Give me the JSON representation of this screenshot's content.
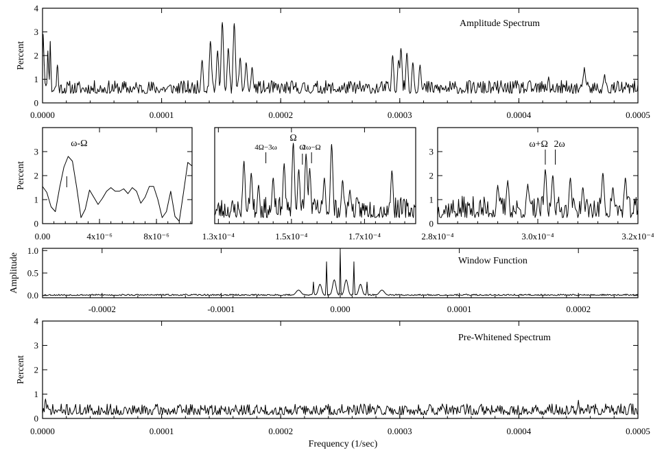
{
  "figure": {
    "xlabel_bottom": "Frequency (1/sec)"
  },
  "chart_data": [
    {
      "id": "amplitude",
      "type": "line",
      "title": "Amplitude Spectrum",
      "xlabel": "",
      "ylabel": "Percent",
      "xlim": [
        0,
        0.0005
      ],
      "ylim": [
        0,
        4
      ],
      "xticks": [
        0,
        0.0001,
        0.0002,
        0.0003,
        0.0004,
        0.0005
      ],
      "xtick_labels": [
        "0.0000",
        "0.0001",
        "0.0002",
        "0.0003",
        "0.0004",
        "0.0005"
      ],
      "yticks": [
        0,
        1,
        2,
        3,
        4
      ],
      "ytick_labels": [
        "0",
        "1",
        "2",
        "3",
        "4"
      ],
      "noise": {
        "points": 700,
        "seed": 11,
        "base": 0.4,
        "amp": 0.55
      },
      "features": [
        {
          "x": 5e-07,
          "y": 2.9,
          "w": 8e-07
        },
        {
          "x": 1.5e-06,
          "y": 1.6,
          "w": 8e-07
        },
        {
          "x": 4.5e-06,
          "y": 2.2,
          "w": 8e-07
        },
        {
          "x": 6.5e-06,
          "y": 2.6,
          "w": 8e-07
        },
        {
          "x": 1.25e-05,
          "y": 1.6,
          "w": 1.2e-06
        },
        {
          "x": 0.000134,
          "y": 1.8,
          "w": 1.5e-06
        },
        {
          "x": 0.000141,
          "y": 2.6,
          "w": 1.5e-06
        },
        {
          "x": 0.000147,
          "y": 2.2,
          "w": 1.5e-06
        },
        {
          "x": 0.000151,
          "y": 3.4,
          "w": 1.5e-06
        },
        {
          "x": 0.000156,
          "y": 2.3,
          "w": 1.5e-06
        },
        {
          "x": 0.000161,
          "y": 3.35,
          "w": 1.5e-06
        },
        {
          "x": 0.000166,
          "y": 1.9,
          "w": 1.5e-06
        },
        {
          "x": 0.000171,
          "y": 1.7,
          "w": 1.5e-06
        },
        {
          "x": 0.000176,
          "y": 1.5,
          "w": 1.5e-06
        },
        {
          "x": 0.000294,
          "y": 2.0,
          "w": 1.5e-06
        },
        {
          "x": 0.000299,
          "y": 1.8,
          "w": 1.5e-06
        },
        {
          "x": 0.000301,
          "y": 2.3,
          "w": 1.5e-06
        },
        {
          "x": 0.000306,
          "y": 2.1,
          "w": 1.5e-06
        },
        {
          "x": 0.000311,
          "y": 1.7,
          "w": 1.5e-06
        },
        {
          "x": 0.000317,
          "y": 1.6,
          "w": 1.5e-06
        },
        {
          "x": 0.000425,
          "y": 1.1,
          "w": 1.5e-06
        },
        {
          "x": 0.000455,
          "y": 1.5,
          "w": 1.5e-06
        },
        {
          "x": 0.000472,
          "y": 1.2,
          "w": 1.5e-06
        }
      ]
    },
    {
      "id": "zoom_low",
      "type": "line",
      "title": "",
      "xlabel": "",
      "ylabel": "Percent",
      "xlim": [
        0,
        1.05e-05
      ],
      "ylim": [
        0,
        4
      ],
      "xticks": [
        0,
        4e-06,
        8e-06
      ],
      "xtick_labels": [
        "0.00",
        "4x10⁻⁶",
        "8x10⁻⁶"
      ],
      "yticks": [
        0,
        1,
        2,
        3
      ],
      "ytick_labels": [
        "0",
        "1",
        "2",
        "3"
      ],
      "x": [
        0.0,
        3e-07,
        6e-07,
        9e-07,
        1.2e-06,
        1.5e-06,
        1.8e-06,
        2.1e-06,
        2.4e-06,
        2.7e-06,
        3e-06,
        3.3e-06,
        3.6e-06,
        3.9e-06,
        4.2e-06,
        4.5e-06,
        4.8e-06,
        5.1e-06,
        5.4e-06,
        5.7e-06,
        6e-06,
        6.3e-06,
        6.6e-06,
        6.9e-06,
        7.2e-06,
        7.5e-06,
        7.8e-06,
        8.1e-06,
        8.4e-06,
        8.7e-06,
        9e-06,
        9.3e-06,
        9.6e-06,
        9.9e-06,
        1.02e-05,
        1.05e-05
      ],
      "y": [
        1.55,
        1.3,
        0.7,
        0.5,
        1.5,
        2.35,
        2.8,
        2.6,
        1.5,
        0.25,
        0.6,
        1.4,
        1.1,
        0.8,
        1.05,
        1.35,
        1.5,
        1.35,
        1.35,
        1.45,
        1.25,
        1.5,
        1.35,
        0.85,
        1.1,
        1.55,
        1.55,
        1.0,
        0.25,
        0.5,
        1.35,
        0.3,
        0.1,
        1.3,
        2.55,
        2.4
      ],
      "annotations": [
        {
          "label": "ω-Ω",
          "x": 1.7e-06,
          "size": "large"
        }
      ]
    },
    {
      "id": "zoom_mid",
      "type": "line",
      "title": "",
      "xlabel": "",
      "ylabel": "",
      "xlim": [
        0.000129,
        0.000184
      ],
      "ylim": [
        0,
        4
      ],
      "xticks": [
        0.00013,
        0.00015,
        0.00017
      ],
      "xtick_labels": [
        "1.3x10⁻⁴",
        "1.5x10⁻⁴",
        "1.7x10⁻⁴"
      ],
      "yticks": [],
      "ytick_labels": [],
      "noise": {
        "points": 260,
        "seed": 23,
        "base": 0.25,
        "amp": 0.85
      },
      "features": [
        {
          "x": 0.000137,
          "y": 2.6,
          "w": 5e-07
        },
        {
          "x": 0.000139,
          "y": 2.1,
          "w": 5e-07
        },
        {
          "x": 0.000141,
          "y": 1.6,
          "w": 5e-07
        },
        {
          "x": 0.000145,
          "y": 1.9,
          "w": 5e-07
        },
        {
          "x": 0.000148,
          "y": 2.5,
          "w": 5e-07
        },
        {
          "x": 0.0001505,
          "y": 3.35,
          "w": 5e-07
        },
        {
          "x": 0.000152,
          "y": 2.25,
          "w": 5e-07
        },
        {
          "x": 0.000154,
          "y": 2.9,
          "w": 5e-07
        },
        {
          "x": 0.000155,
          "y": 2.3,
          "w": 5e-07
        },
        {
          "x": 0.000159,
          "y": 1.9,
          "w": 5e-07
        },
        {
          "x": 0.000161,
          "y": 3.3,
          "w": 5e-07
        },
        {
          "x": 0.000164,
          "y": 1.8,
          "w": 5e-07
        },
        {
          "x": 0.000166,
          "y": 1.4,
          "w": 5e-07
        },
        {
          "x": 0.0001775,
          "y": 2.2,
          "w": 5e-07
        }
      ],
      "annotations": [
        {
          "label": "Ω",
          "x": 0.0001505,
          "size": "large",
          "above": true
        },
        {
          "label": "4Ω−3ω",
          "x": 0.000143,
          "size": "small"
        },
        {
          "label": "ω",
          "x": 0.000153,
          "size": "large"
        },
        {
          "label": "2ω−Ω",
          "x": 0.0001555,
          "size": "small"
        }
      ]
    },
    {
      "id": "zoom_high",
      "type": "line",
      "title": "",
      "xlabel": "",
      "ylabel": "",
      "xlim": [
        0.00028,
        0.00032
      ],
      "ylim": [
        0,
        4
      ],
      "xticks": [
        0.00028,
        0.0003,
        0.00032
      ],
      "xtick_labels": [
        "2.8x10⁻⁴",
        "3.0x10⁻⁴",
        "3.2x10⁻⁴"
      ],
      "yticks": [
        0,
        1,
        2,
        3
      ],
      "ytick_labels": [
        "0",
        "1",
        "2",
        "3"
      ],
      "noise": {
        "points": 220,
        "seed": 37,
        "base": 0.25,
        "amp": 0.9
      },
      "features": [
        {
          "x": 0.000292,
          "y": 1.6,
          "w": 4e-07
        },
        {
          "x": 0.000294,
          "y": 1.8,
          "w": 4e-07
        },
        {
          "x": 0.000298,
          "y": 1.65,
          "w": 4e-07
        },
        {
          "x": 0.0003015,
          "y": 2.25,
          "w": 4e-07
        },
        {
          "x": 0.000303,
          "y": 2.0,
          "w": 4e-07
        },
        {
          "x": 0.0003065,
          "y": 1.9,
          "w": 4e-07
        },
        {
          "x": 0.000309,
          "y": 1.5,
          "w": 4e-07
        },
        {
          "x": 0.000313,
          "y": 2.1,
          "w": 4e-07
        },
        {
          "x": 0.000315,
          "y": 1.5,
          "w": 4e-07
        },
        {
          "x": 0.0003175,
          "y": 1.9,
          "w": 4e-07
        }
      ],
      "annotations": [
        {
          "label": "ω+Ω",
          "x": 0.0003015,
          "size": "large"
        },
        {
          "label": "2ω",
          "x": 0.0003035,
          "size": "large"
        }
      ]
    },
    {
      "id": "window",
      "type": "line",
      "title": "Window Function",
      "xlabel": "",
      "ylabel": "Amplitude",
      "xlim": [
        -0.00025,
        0.00025
      ],
      "ylim": [
        -0.05,
        1.05
      ],
      "xticks": [
        -0.0002,
        -0.0001,
        0,
        0.0001,
        0.0002
      ],
      "xtick_labels": [
        "-0.0002",
        "-0.0001",
        "0.000",
        "0.0001",
        "0.0002"
      ],
      "yticks": [
        0,
        0.5,
        1.0
      ],
      "ytick_labels": [
        "0.0",
        "0.5",
        "1.0"
      ],
      "noise": {
        "points": 800,
        "seed": 53,
        "base": 0.0,
        "amp": 0.03
      },
      "features": [
        {
          "x": 0,
          "y": 1.0,
          "w": 4e-07
        },
        {
          "x": -1.15e-05,
          "y": 0.75,
          "w": 4e-07
        },
        {
          "x": 1.15e-05,
          "y": 0.75,
          "w": 4e-07
        },
        {
          "x": -2.25e-05,
          "y": 0.3,
          "w": 5e-07
        },
        {
          "x": 2.25e-05,
          "y": 0.3,
          "w": 5e-07
        },
        {
          "x": -5e-06,
          "y": 0.35,
          "w": 2e-06
        },
        {
          "x": 5e-06,
          "y": 0.35,
          "w": 2e-06
        },
        {
          "x": -1.7e-05,
          "y": 0.25,
          "w": 2e-06
        },
        {
          "x": 1.7e-05,
          "y": 0.25,
          "w": 2e-06
        },
        {
          "x": -3.5e-05,
          "y": 0.12,
          "w": 3e-06
        },
        {
          "x": 3.5e-05,
          "y": 0.12,
          "w": 3e-06
        }
      ]
    },
    {
      "id": "prewhitened",
      "type": "line",
      "title": "Pre-Whitened Spectrum",
      "xlabel": "Frequency (1/sec)",
      "ylabel": "Percent",
      "xlim": [
        0,
        0.0005
      ],
      "ylim": [
        0,
        4
      ],
      "xticks": [
        0,
        0.0001,
        0.0002,
        0.0003,
        0.0004,
        0.0005
      ],
      "xtick_labels": [
        "0.0000",
        "0.0001",
        "0.0002",
        "0.0003",
        "0.0004",
        "0.0005"
      ],
      "yticks": [
        0,
        1,
        2,
        3,
        4
      ],
      "ytick_labels": [
        "0",
        "1",
        "2",
        "3",
        "4"
      ],
      "noise": {
        "points": 700,
        "seed": 71,
        "base": 0.15,
        "amp": 0.45
      },
      "features": [
        {
          "x": 0.00045,
          "y": 0.75,
          "w": 1e-06
        },
        {
          "x": 2.5e-06,
          "y": 0.8,
          "w": 1e-06
        }
      ]
    }
  ]
}
